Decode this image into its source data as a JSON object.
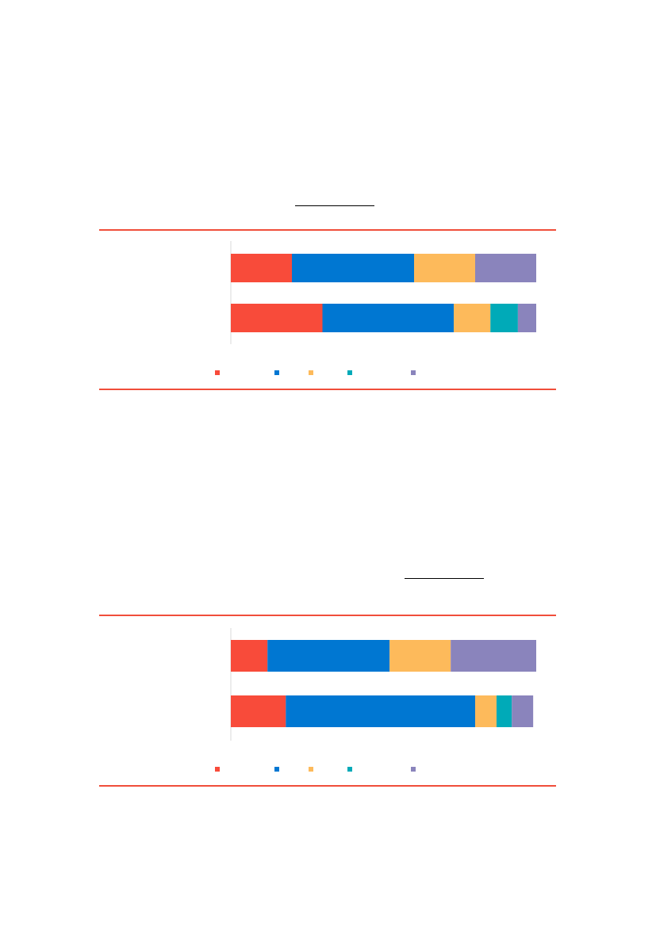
{
  "colors": {
    "rule": "#f04e3a",
    "series": [
      "#f84b3a",
      "#0077d2",
      "#fdba5b",
      "#00aab8",
      "#8a84bc"
    ]
  },
  "chart_data": [
    {
      "type": "bar",
      "orientation": "horizontal",
      "stacked": true,
      "categories": [
        "",
        ""
      ],
      "series": [
        {
          "color": "#f84b3a",
          "values": [
            20,
            30
          ]
        },
        {
          "color": "#0077d2",
          "values": [
            40,
            43
          ]
        },
        {
          "color": "#fdba5b",
          "values": [
            20,
            12
          ]
        },
        {
          "color": "#00aab8",
          "values": [
            0,
            9
          ]
        },
        {
          "color": "#8a84bc",
          "values": [
            20,
            6
          ]
        }
      ],
      "xlim": [
        0,
        100
      ],
      "grid": false,
      "legend": "bottom"
    },
    {
      "type": "bar",
      "orientation": "horizontal",
      "stacked": true,
      "categories": [
        "",
        ""
      ],
      "series": [
        {
          "color": "#f84b3a",
          "values": [
            12,
            18
          ]
        },
        {
          "color": "#0077d2",
          "values": [
            40,
            62
          ]
        },
        {
          "color": "#fdba5b",
          "values": [
            20,
            7
          ]
        },
        {
          "color": "#00aab8",
          "values": [
            0,
            5
          ]
        },
        {
          "color": "#8a84bc",
          "values": [
            28,
            7
          ]
        }
      ],
      "xlim": [
        0,
        100
      ],
      "grid": false,
      "legend": "bottom"
    }
  ]
}
